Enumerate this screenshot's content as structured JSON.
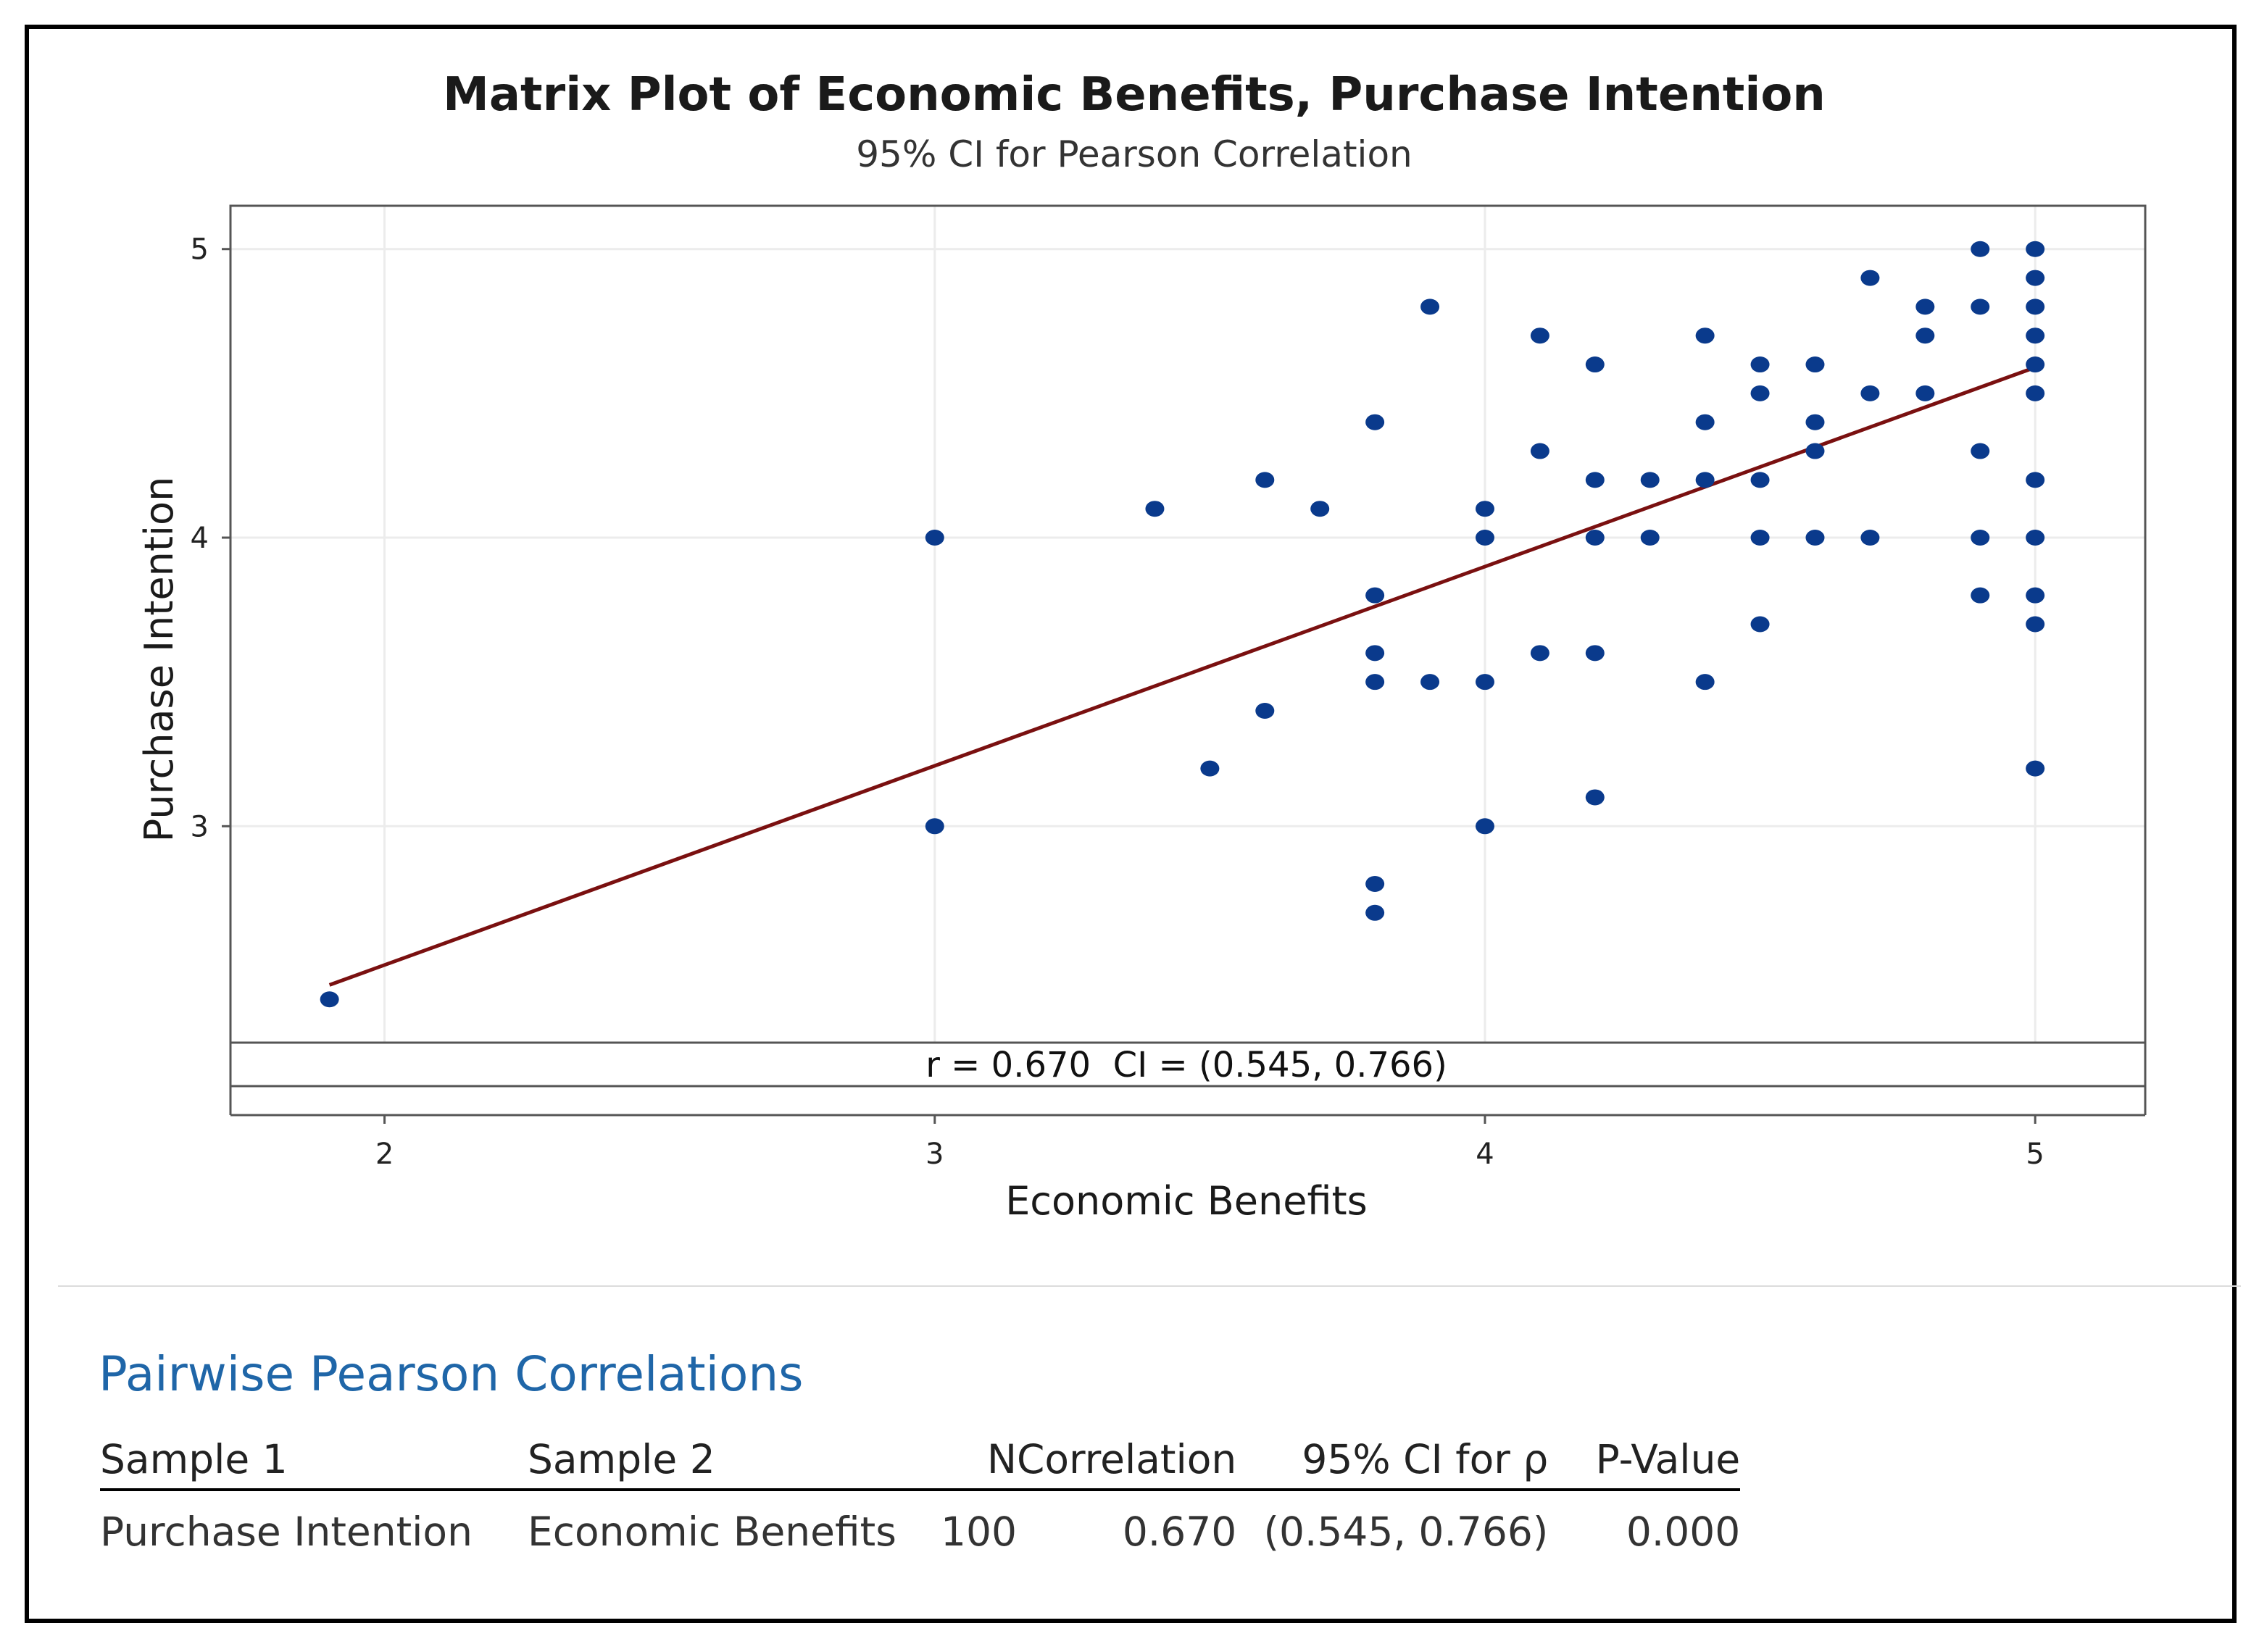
{
  "chart_data": {
    "type": "scatter",
    "title": "Matrix Plot of Economic Benefits, Purchase Intention",
    "subtitle": "95% CI for Pearson Correlation",
    "xlabel": "Economic Benefits",
    "ylabel": "Purchase Intention",
    "xlim": [
      1.72,
      5.2
    ],
    "ylim": [
      2.25,
      5.15
    ],
    "xticks": [
      2,
      3,
      4,
      5
    ],
    "yticks": [
      3,
      4,
      5
    ],
    "grid": true,
    "annotation": "r = 0.670  CI = (0.545, 0.766)",
    "fit_line": {
      "x": [
        1.9,
        5.0
      ],
      "y": [
        2.45,
        4.59
      ]
    },
    "points": [
      [
        1.9,
        2.4
      ],
      [
        3.0,
        4.0
      ],
      [
        3.0,
        3.0
      ],
      [
        3.4,
        4.1
      ],
      [
        3.5,
        3.2
      ],
      [
        3.6,
        4.2
      ],
      [
        3.6,
        3.4
      ],
      [
        3.7,
        4.1
      ],
      [
        3.8,
        4.4
      ],
      [
        3.8,
        3.8
      ],
      [
        3.8,
        3.6
      ],
      [
        3.8,
        3.5
      ],
      [
        3.8,
        2.8
      ],
      [
        3.8,
        2.7
      ],
      [
        3.9,
        4.8
      ],
      [
        3.9,
        3.5
      ],
      [
        4.0,
        4.1
      ],
      [
        4.0,
        4.0
      ],
      [
        4.0,
        3.5
      ],
      [
        4.0,
        3.0
      ],
      [
        4.1,
        4.7
      ],
      [
        4.1,
        4.3
      ],
      [
        4.1,
        3.6
      ],
      [
        4.2,
        4.6
      ],
      [
        4.2,
        4.2
      ],
      [
        4.2,
        4.0
      ],
      [
        4.2,
        3.6
      ],
      [
        4.2,
        3.1
      ],
      [
        4.3,
        4.2
      ],
      [
        4.3,
        4.0
      ],
      [
        4.4,
        4.7
      ],
      [
        4.4,
        4.4
      ],
      [
        4.4,
        4.2
      ],
      [
        4.4,
        3.5
      ],
      [
        4.5,
        4.6
      ],
      [
        4.5,
        4.5
      ],
      [
        4.5,
        4.2
      ],
      [
        4.5,
        4.0
      ],
      [
        4.5,
        3.7
      ],
      [
        4.6,
        4.6
      ],
      [
        4.6,
        4.4
      ],
      [
        4.6,
        4.3
      ],
      [
        4.6,
        4.0
      ],
      [
        4.7,
        4.9
      ],
      [
        4.7,
        4.5
      ],
      [
        4.7,
        4.0
      ],
      [
        4.8,
        4.8
      ],
      [
        4.8,
        4.7
      ],
      [
        4.8,
        4.5
      ],
      [
        4.9,
        5.0
      ],
      [
        4.9,
        4.8
      ],
      [
        4.9,
        4.3
      ],
      [
        4.9,
        4.0
      ],
      [
        4.9,
        3.8
      ],
      [
        5.0,
        5.0
      ],
      [
        5.0,
        4.9
      ],
      [
        5.0,
        4.8
      ],
      [
        5.0,
        4.7
      ],
      [
        5.0,
        4.6
      ],
      [
        5.0,
        4.5
      ],
      [
        5.0,
        4.2
      ],
      [
        5.0,
        4.0
      ],
      [
        5.0,
        3.8
      ],
      [
        5.0,
        3.7
      ],
      [
        5.0,
        3.2
      ]
    ],
    "colors": {
      "points": "#0a3a8c",
      "fit_line": "#7a1010",
      "grid": "#ececec"
    }
  },
  "correlations": {
    "title": "Pairwise Pearson Correlations",
    "headers": [
      "Sample 1",
      "Sample 2",
      "N",
      "Correlation",
      "95% CI for ρ",
      "P-Value"
    ],
    "rows": [
      [
        "Purchase Intention",
        "Economic Benefits",
        "100",
        "0.670",
        "(0.545, 0.766)",
        "0.000"
      ]
    ]
  }
}
